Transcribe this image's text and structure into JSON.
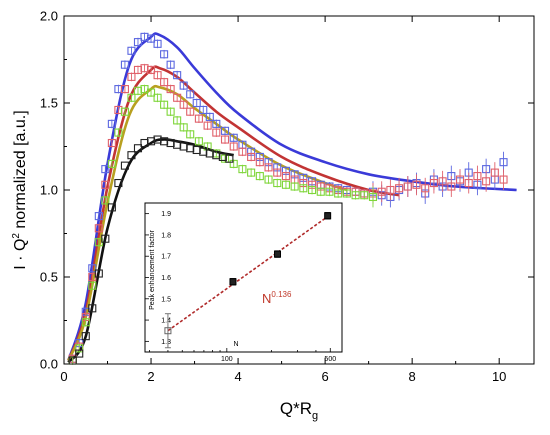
{
  "chart_data": [
    {
      "type": "scatter",
      "title": "",
      "xlabel": "Q*R",
      "xlabel_sub": "g",
      "ylabel_pre": "I · Q",
      "ylabel_sup": "2",
      "ylabel_post": " normalized [a.u.]",
      "xlim": [
        0,
        10.8
      ],
      "ylim": [
        0,
        2.0
      ],
      "xticks": [
        0,
        2,
        4,
        6,
        8,
        10
      ],
      "yticks": [
        0.0,
        0.5,
        1.0,
        1.5,
        2.0
      ],
      "xtick_labels": [
        "0",
        "2",
        "4",
        "6",
        "8",
        "10"
      ],
      "ytick_labels": [
        "0.0",
        "0.5",
        "1.0",
        "1.5",
        "2.0"
      ],
      "legend": "none",
      "series": [
        {
          "color": "#5b67e0",
          "marker": "open-square",
          "error_bars": true,
          "x": [
            0.2,
            0.35,
            0.5,
            0.65,
            0.8,
            0.95,
            1.1,
            1.25,
            1.4,
            1.55,
            1.7,
            1.85,
            2.0,
            2.15,
            2.3,
            2.45,
            2.6,
            2.75,
            2.9,
            3.05,
            3.2,
            3.35,
            3.5,
            3.7,
            3.9,
            4.1,
            4.3,
            4.5,
            4.7,
            4.9,
            5.1,
            5.3,
            5.5,
            5.7,
            5.9,
            6.1,
            6.3,
            6.5,
            6.7,
            6.9,
            7.1,
            7.3,
            7.5,
            7.7,
            7.9,
            8.1,
            8.3,
            8.5,
            8.7,
            8.9,
            9.1,
            9.3,
            9.5,
            9.7,
            9.9,
            10.1
          ],
          "y": [
            0.03,
            0.12,
            0.3,
            0.55,
            0.85,
            1.12,
            1.38,
            1.58,
            1.72,
            1.8,
            1.85,
            1.88,
            1.87,
            1.84,
            1.78,
            1.72,
            1.66,
            1.6,
            1.55,
            1.5,
            1.46,
            1.42,
            1.38,
            1.34,
            1.3,
            1.26,
            1.22,
            1.19,
            1.16,
            1.13,
            1.11,
            1.09,
            1.07,
            1.05,
            1.03,
            1.02,
            1.01,
            1.0,
            0.99,
            0.98,
            0.99,
            0.97,
            0.96,
            1.0,
            1.02,
            1.04,
            0.98,
            1.06,
            1.02,
            1.08,
            1.05,
            1.1,
            1.03,
            1.12,
            1.06,
            1.16
          ]
        },
        {
          "color": "#e0606a",
          "marker": "open-square",
          "error_bars": true,
          "x": [
            0.2,
            0.35,
            0.5,
            0.65,
            0.8,
            0.95,
            1.1,
            1.25,
            1.4,
            1.55,
            1.7,
            1.85,
            2.0,
            2.15,
            2.3,
            2.45,
            2.6,
            2.75,
            2.9,
            3.1,
            3.3,
            3.5,
            3.7,
            3.9,
            4.1,
            4.3,
            4.5,
            4.7,
            4.9,
            5.1,
            5.3,
            5.5,
            5.7,
            5.9,
            6.1,
            6.3,
            6.5,
            6.7,
            6.9,
            7.1,
            7.3,
            7.5,
            7.7,
            7.9,
            8.1,
            8.3,
            8.5,
            8.7,
            8.9,
            9.1,
            9.3,
            9.5,
            9.7,
            9.9,
            10.1
          ],
          "y": [
            0.03,
            0.1,
            0.27,
            0.5,
            0.78,
            1.03,
            1.27,
            1.46,
            1.58,
            1.65,
            1.69,
            1.7,
            1.69,
            1.66,
            1.62,
            1.58,
            1.53,
            1.49,
            1.45,
            1.41,
            1.37,
            1.33,
            1.29,
            1.25,
            1.22,
            1.19,
            1.16,
            1.13,
            1.1,
            1.08,
            1.06,
            1.04,
            1.03,
            1.02,
            1.01,
            1.0,
            0.99,
            0.99,
            0.98,
            0.98,
            0.99,
            1.0,
            1.01,
            1.02,
            1.03,
            1.01,
            1.04,
            1.05,
            1.02,
            1.06,
            1.04,
            1.08,
            1.05,
            1.1,
            1.06
          ]
        },
        {
          "color": "#7fd63a",
          "marker": "open-square",
          "error_bars": true,
          "x": [
            0.2,
            0.35,
            0.5,
            0.65,
            0.8,
            0.95,
            1.1,
            1.25,
            1.4,
            1.55,
            1.7,
            1.85,
            2.0,
            2.15,
            2.3,
            2.45,
            2.6,
            2.75,
            2.9,
            3.1,
            3.3,
            3.5,
            3.7,
            3.9,
            4.1,
            4.3,
            4.5,
            4.7,
            4.9,
            5.1,
            5.3,
            5.5,
            5.7,
            5.9,
            6.1,
            6.3,
            6.5,
            6.7,
            6.9,
            7.1
          ],
          "y": [
            0.02,
            0.09,
            0.24,
            0.45,
            0.7,
            0.94,
            1.15,
            1.33,
            1.45,
            1.53,
            1.57,
            1.58,
            1.56,
            1.53,
            1.49,
            1.45,
            1.4,
            1.36,
            1.32,
            1.28,
            1.25,
            1.21,
            1.18,
            1.15,
            1.12,
            1.1,
            1.08,
            1.06,
            1.04,
            1.03,
            1.02,
            1.01,
            1.0,
            0.99,
            0.99,
            0.98,
            0.98,
            0.97,
            0.97,
            0.96
          ]
        },
        {
          "color": "#222222",
          "marker": "open-square",
          "error_bars": false,
          "x": [
            0.2,
            0.35,
            0.5,
            0.65,
            0.8,
            0.95,
            1.1,
            1.25,
            1.4,
            1.55,
            1.7,
            1.85,
            2.0,
            2.15,
            2.3,
            2.45,
            2.6,
            2.75,
            2.9,
            3.05,
            3.2,
            3.35,
            3.5,
            3.65,
            3.8
          ],
          "y": [
            0.02,
            0.06,
            0.16,
            0.32,
            0.52,
            0.72,
            0.9,
            1.04,
            1.14,
            1.2,
            1.24,
            1.27,
            1.28,
            1.29,
            1.28,
            1.27,
            1.26,
            1.25,
            1.24,
            1.23,
            1.22,
            1.21,
            1.2,
            1.19,
            1.18
          ]
        }
      ],
      "fits": [
        {
          "color": "#3a3ad8",
          "x": [
            0.1,
            0.5,
            1.0,
            1.5,
            2.0,
            2.2,
            2.6,
            3.0,
            3.5,
            4.0,
            5.0,
            6.0,
            7.0,
            8.0,
            9.0,
            10.4
          ],
          "y": [
            0.02,
            0.35,
            1.15,
            1.72,
            1.88,
            1.89,
            1.82,
            1.7,
            1.56,
            1.44,
            1.26,
            1.16,
            1.09,
            1.05,
            1.02,
            1.0
          ]
        },
        {
          "color": "#c23434",
          "x": [
            0.1,
            0.5,
            1.0,
            1.5,
            2.0,
            2.2,
            2.6,
            3.0,
            3.5,
            4.0,
            5.0,
            6.0,
            7.0,
            7.7
          ],
          "y": [
            0.02,
            0.3,
            1.02,
            1.52,
            1.69,
            1.7,
            1.65,
            1.56,
            1.45,
            1.36,
            1.19,
            1.08,
            1.0,
            0.97
          ]
        },
        {
          "color": "#b8a020",
          "x": [
            0.1,
            0.5,
            1.0,
            1.5,
            2.0,
            2.2,
            2.6,
            3.0,
            3.5,
            4.0,
            5.0,
            6.0,
            6.5
          ],
          "y": [
            0.02,
            0.27,
            0.93,
            1.43,
            1.58,
            1.59,
            1.55,
            1.47,
            1.38,
            1.29,
            1.14,
            1.04,
            1.0
          ]
        },
        {
          "color": "#111111",
          "x": [
            0.1,
            0.5,
            1.0,
            1.5,
            2.0,
            2.3,
            2.6,
            3.0,
            3.5,
            3.9
          ],
          "y": [
            0.01,
            0.16,
            0.78,
            1.15,
            1.27,
            1.29,
            1.28,
            1.26,
            1.22,
            1.2
          ]
        }
      ]
    },
    {
      "type": "scatter",
      "title": "",
      "xlabel": "N",
      "ylabel": "Peak enhancement factor",
      "xscale": "log",
      "xlim": [
        28,
        600
      ],
      "ylim": [
        1.25,
        1.95
      ],
      "xticks": [
        100,
        500
      ],
      "xtick_labels": [
        "100",
        "500"
      ],
      "minor_xticks": [
        30,
        40,
        50,
        60,
        70,
        80,
        90,
        200,
        300,
        400
      ],
      "yticks": [
        1.3,
        1.4,
        1.5,
        1.6,
        1.7,
        1.8,
        1.9
      ],
      "ytick_labels": [
        "1.3",
        "1.4",
        "1.5",
        "1.6",
        "1.7",
        "1.8",
        "1.9"
      ],
      "points": [
        {
          "x": 40,
          "y": 1.35,
          "err": 0.08,
          "filled": false
        },
        {
          "x": 110,
          "y": 1.58,
          "err": 0.015,
          "filled": true
        },
        {
          "x": 220,
          "y": 1.71,
          "err": 0.015,
          "filled": true
        },
        {
          "x": 480,
          "y": 1.89,
          "err": 0.015,
          "filled": true
        }
      ],
      "fit": {
        "x": [
          40,
          500
        ],
        "y": [
          1.35,
          1.895
        ],
        "color": "#b02a2a"
      },
      "annotation": {
        "base": "N",
        "sup": "0.136",
        "color": "#c0392b"
      }
    }
  ]
}
